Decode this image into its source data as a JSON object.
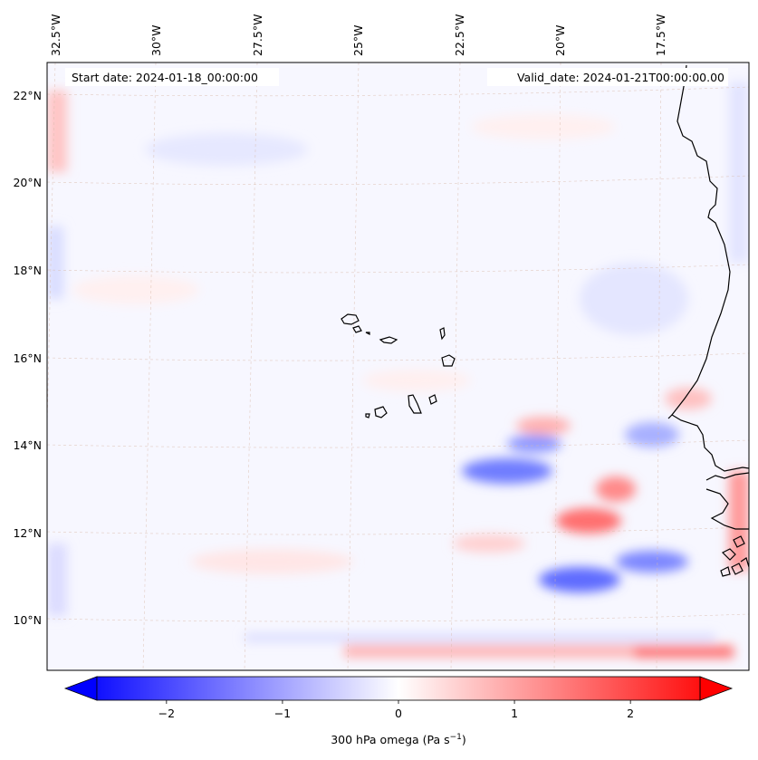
{
  "map": {
    "start_date": "Start date: 2024-01-18_00:00:00",
    "valid_date": "Valid_date: 2024-01-21T00:00:00.00",
    "lon_labels": [
      "32.5°W",
      "30°W",
      "27.5°W",
      "25°W",
      "22.5°W",
      "20°W",
      "17.5°W"
    ],
    "lat_labels": [
      "22°N",
      "20°N",
      "18°N",
      "16°N",
      "14°N",
      "12°N",
      "10°N"
    ],
    "field_colors": {
      "negative": "#0000ff",
      "zero": "#ffffff",
      "positive": "#ff0000"
    }
  },
  "colorbar": {
    "ticks": [
      "−2",
      "−1",
      "0",
      "1",
      "2"
    ],
    "tick_values": [
      -2,
      -1,
      0,
      1,
      2
    ],
    "range": [
      -2.6,
      2.6
    ],
    "label_main": "300 hPa omega (Pa s",
    "label_sup": "−1",
    "label_tail": ")"
  }
}
